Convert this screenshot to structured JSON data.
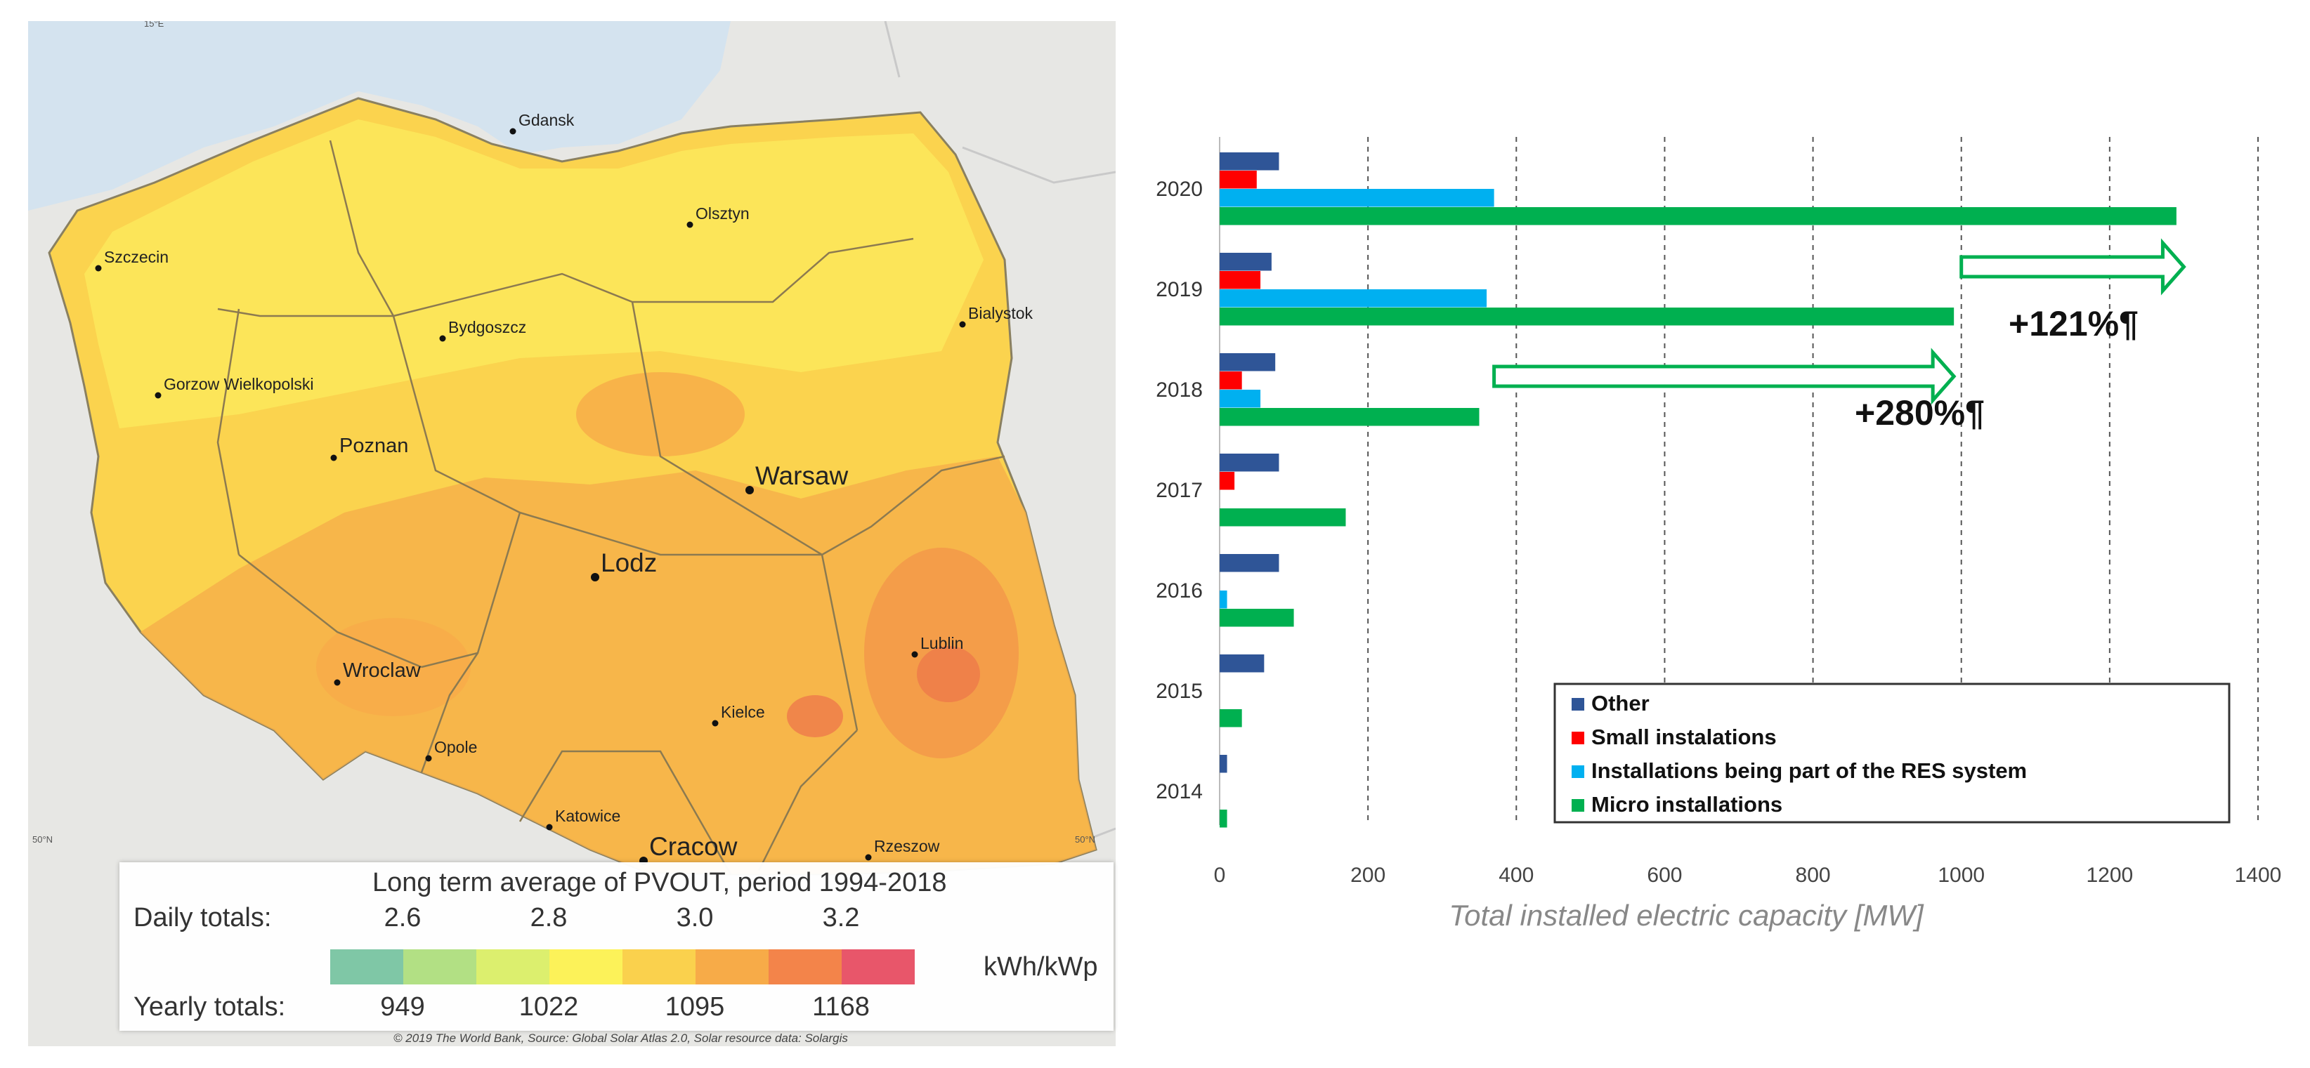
{
  "map": {
    "cities": [
      {
        "name": "Gdansk",
        "size": "small"
      },
      {
        "name": "Olsztyn",
        "size": "small"
      },
      {
        "name": "Szczecin",
        "size": "small"
      },
      {
        "name": "Bialystok",
        "size": "small"
      },
      {
        "name": "Bydgoszcz",
        "size": "small"
      },
      {
        "name": "Gorzow Wielkopolski",
        "size": "small"
      },
      {
        "name": "Poznan",
        "size": "medium"
      },
      {
        "name": "Warsaw",
        "size": "large"
      },
      {
        "name": "Lodz",
        "size": "large"
      },
      {
        "name": "Wroclaw",
        "size": "medium"
      },
      {
        "name": "Lublin",
        "size": "small"
      },
      {
        "name": "Kielce",
        "size": "small"
      },
      {
        "name": "Opole",
        "size": "small"
      },
      {
        "name": "Katowice",
        "size": "small"
      },
      {
        "name": "Cracow",
        "size": "large"
      },
      {
        "name": "Rzeszow",
        "size": "small"
      }
    ],
    "grid_labels": {
      "top": "15°E",
      "left": "50°N",
      "right": "50°N"
    },
    "legend": {
      "title": "Long term average of PVOUT, period 1994-2018",
      "daily_label": "Daily totals:",
      "daily_values": [
        "2.6",
        "2.8",
        "3.0",
        "3.2"
      ],
      "yearly_label": "Yearly totals:",
      "yearly_values": [
        "949",
        "1022",
        "1095",
        "1168"
      ],
      "unit": "kWh/kWp",
      "colors": [
        "#7fc7a6",
        "#b2e084",
        "#dcef6e",
        "#fcf259",
        "#fad14d",
        "#f7ab48",
        "#f3844a",
        "#e8566a"
      ]
    },
    "credit": "© 2019 The World Bank, Source: Global Solar Atlas 2.0, Solar resource data: Solargis"
  },
  "chart_data": {
    "type": "bar",
    "orientation": "horizontal",
    "categories": [
      "2014",
      "2015",
      "2016",
      "2017",
      "2018",
      "2019",
      "2020"
    ],
    "series": [
      {
        "name": "Other",
        "color": "#2f5597",
        "values": [
          10,
          60,
          80,
          80,
          75,
          70,
          80
        ]
      },
      {
        "name": "Small instalations",
        "color": "#ff0000",
        "values": [
          0,
          0,
          0,
          20,
          30,
          55,
          50
        ]
      },
      {
        "name": "Installations being part of the RES system",
        "color": "#00b0f0",
        "values": [
          0,
          0,
          10,
          0,
          55,
          360,
          370
        ]
      },
      {
        "name": "Micro installations",
        "color": "#00b050",
        "values": [
          10,
          30,
          100,
          170,
          350,
          990,
          1290
        ]
      }
    ],
    "xlim": [
      0,
      1400
    ],
    "xticks": [
      0,
      200,
      400,
      600,
      800,
      1000,
      1200,
      1400
    ],
    "xlabel": "Total installed electric capacity [MW]",
    "grid": "vertical dashed",
    "legend_position": "lower-right",
    "annotations": [
      {
        "text": "+280%¶",
        "arrow_from": 370,
        "arrow_to": 990,
        "year": "2018"
      },
      {
        "text": "+121%¶",
        "arrow_from": 1000,
        "arrow_to": 1300,
        "year": "2019"
      }
    ]
  }
}
